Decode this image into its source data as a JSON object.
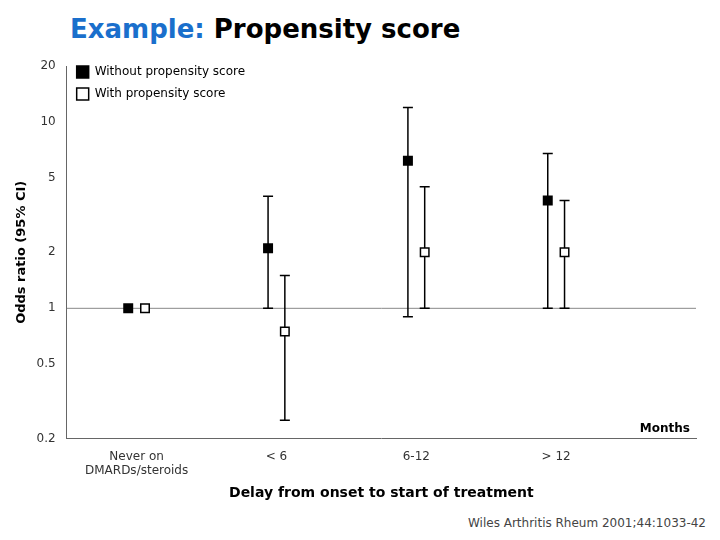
{
  "chart_data": {
    "type": "scatter",
    "title_parts": [
      {
        "text": "Example: ",
        "color": "#1a6fcc"
      },
      {
        "text": "Propensity score",
        "color": "#000000"
      }
    ],
    "x_label": "Delay from onset to start of treatment",
    "y_label": "Odds ratio (95% CI)",
    "x_unit_label": "Months",
    "citation": "Wiles Arthritis Rheum 2001;44:1033-42",
    "categories": [
      "Never on\nDMARDs/steroids",
      "< 6",
      "6-12",
      "> 12"
    ],
    "series": [
      {
        "name": "Without propensity score",
        "color": "#000000",
        "marker": "filled_square",
        "values": [
          1.0,
          2.1,
          6.2,
          3.8
        ],
        "ci_low": [
          1.0,
          1.0,
          0.9,
          1.0
        ],
        "ci_high": [
          1.0,
          4.0,
          12.0,
          6.8
        ]
      },
      {
        "name": "With propensity score",
        "color": "#000000",
        "marker": "open_square",
        "values": [
          1.0,
          0.75,
          2.0,
          2.0
        ],
        "ci_low": [
          1.0,
          0.25,
          1.0,
          1.0
        ],
        "ci_high": [
          1.0,
          1.5,
          4.5,
          3.8
        ]
      }
    ],
    "reference_line_y": 1.0,
    "log": "y",
    "ylim": [
      0.2,
      20
    ],
    "yticks": [
      0.2,
      0.5,
      1,
      2,
      5,
      10,
      20
    ],
    "grid": false,
    "legend": "upper left"
  }
}
